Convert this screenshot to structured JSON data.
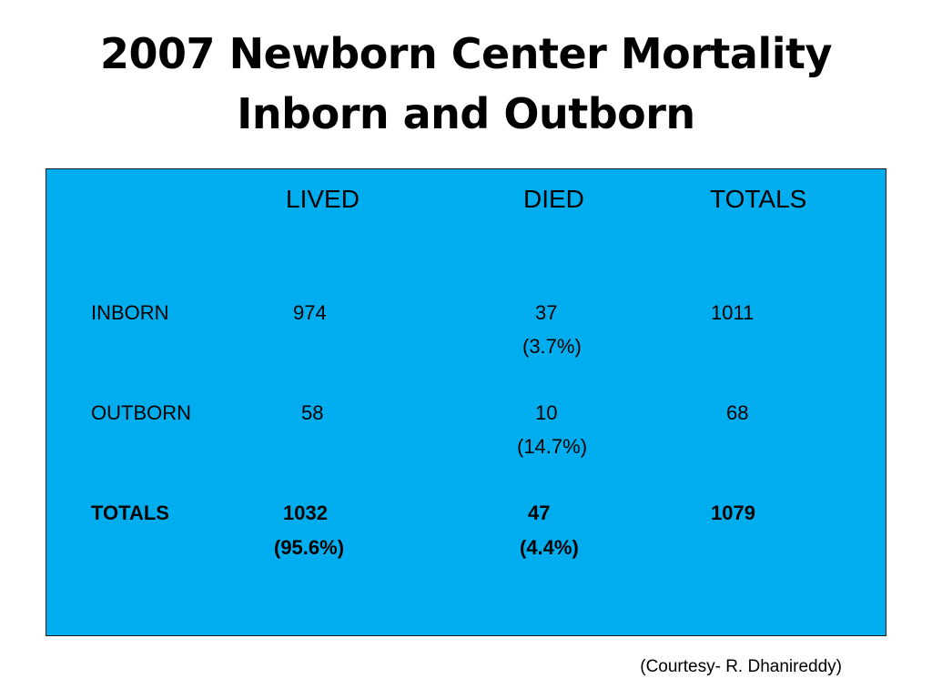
{
  "slide": {
    "title_line1": "2007 Newborn Center Mortality",
    "title_line2": "Inborn and Outborn",
    "courtesy": "(Courtesy- R. Dhanireddy)"
  },
  "table": {
    "headers": {
      "lived": "LIVED",
      "died": "DIED",
      "totals": "TOTALS"
    },
    "rows": [
      {
        "label": "INBORN",
        "lived": "974",
        "died": "37",
        "died_pct": "(3.7%)",
        "total": "1011"
      },
      {
        "label": "OUTBORN",
        "lived": "58",
        "died": "10",
        "died_pct": "(14.7%)",
        "total": "68"
      }
    ],
    "totals_row": {
      "label": "TOTALS",
      "lived": "1032",
      "lived_pct": "(95.6%)",
      "died": "47",
      "died_pct": "(4.4%)",
      "total": "1079"
    }
  },
  "colors": {
    "table_background": "#00aeef",
    "text": "#000000",
    "page_background": "#ffffff"
  }
}
